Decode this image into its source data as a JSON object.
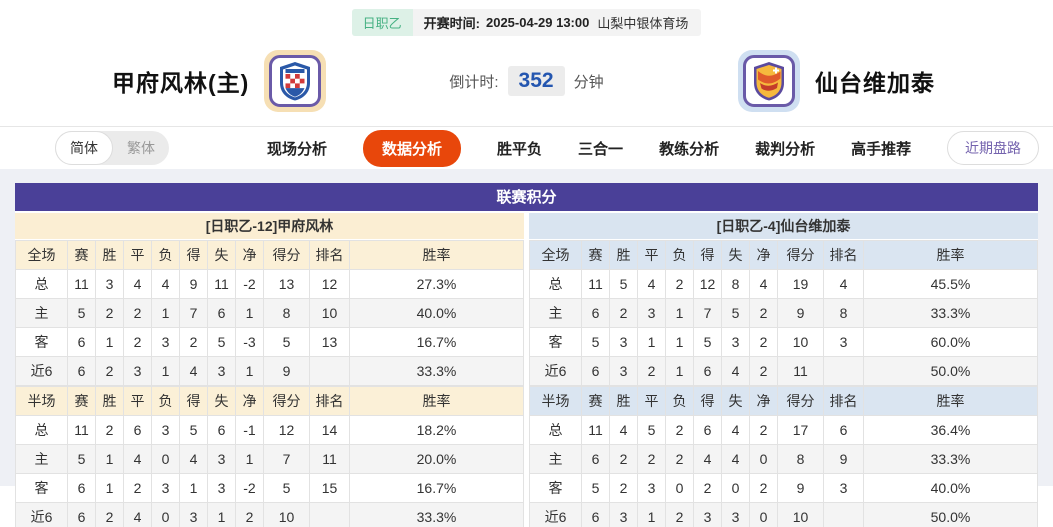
{
  "top_bar": {
    "league_badge": "日职乙",
    "kickoff_label": "开赛时间:",
    "kickoff_time": "2025-04-29 13:00",
    "venue": "山梨中银体育场"
  },
  "match_header": {
    "home_team": "甲府风林(主)",
    "away_team": "仙台维加泰",
    "countdown_label": "倒计时:",
    "countdown_value": "352",
    "countdown_unit": "分钟"
  },
  "nav": {
    "lang_toggle": {
      "simplified": "简体",
      "traditional": "繁体"
    },
    "tabs": [
      {
        "label": "现场分析",
        "active": false
      },
      {
        "label": "数据分析",
        "active": true
      },
      {
        "label": "胜平负",
        "active": false
      },
      {
        "label": "三合一",
        "active": false
      },
      {
        "label": "教练分析",
        "active": false
      },
      {
        "label": "裁判分析",
        "active": false
      },
      {
        "label": "高手推荐",
        "active": false
      }
    ],
    "recent_trends_button": "近期盘路"
  },
  "standings": {
    "title": "联赛积分",
    "home": {
      "header": "[日职乙-12]甲府风林",
      "full": {
        "columns": [
          "全场",
          "赛",
          "胜",
          "平",
          "负",
          "得",
          "失",
          "净",
          "得分",
          "排名",
          "胜率"
        ],
        "rows": [
          {
            "label": "总",
            "type": "total",
            "cells": [
              "11",
              "3",
              "4",
              "4",
              "9",
              "11",
              "-2",
              "13",
              "12",
              "27.3%"
            ]
          },
          {
            "label": "主",
            "type": "home",
            "cells": [
              "5",
              "2",
              "2",
              "1",
              "7",
              "6",
              "1",
              "8",
              "10",
              "40.0%"
            ]
          },
          {
            "label": "客",
            "type": "away",
            "cells": [
              "6",
              "1",
              "2",
              "3",
              "2",
              "5",
              "-3",
              "5",
              "13",
              "16.7%"
            ]
          },
          {
            "label": "近6",
            "type": "recent",
            "cells": [
              "6",
              "2",
              "3",
              "1",
              "4",
              "3",
              "1",
              "9",
              "",
              "33.3%"
            ]
          }
        ]
      },
      "half": {
        "columns": [
          "半场",
          "赛",
          "胜",
          "平",
          "负",
          "得",
          "失",
          "净",
          "得分",
          "排名",
          "胜率"
        ],
        "rows": [
          {
            "label": "总",
            "type": "total",
            "cells": [
              "11",
              "2",
              "6",
              "3",
              "5",
              "6",
              "-1",
              "12",
              "14",
              "18.2%"
            ]
          },
          {
            "label": "主",
            "type": "home",
            "cells": [
              "5",
              "1",
              "4",
              "0",
              "4",
              "3",
              "1",
              "7",
              "11",
              "20.0%"
            ]
          },
          {
            "label": "客",
            "type": "away",
            "cells": [
              "6",
              "1",
              "2",
              "3",
              "1",
              "3",
              "-2",
              "5",
              "15",
              "16.7%"
            ]
          },
          {
            "label": "近6",
            "type": "recent",
            "cells": [
              "6",
              "2",
              "4",
              "0",
              "3",
              "1",
              "2",
              "10",
              "",
              "33.3%"
            ]
          }
        ]
      }
    },
    "away": {
      "header": "[日职乙-4]仙台维加泰",
      "full": {
        "columns": [
          "全场",
          "赛",
          "胜",
          "平",
          "负",
          "得",
          "失",
          "净",
          "得分",
          "排名",
          "胜率"
        ],
        "rows": [
          {
            "label": "总",
            "type": "total",
            "cells": [
              "11",
              "5",
              "4",
              "2",
              "12",
              "8",
              "4",
              "19",
              "4",
              "45.5%"
            ]
          },
          {
            "label": "主",
            "type": "home",
            "cells": [
              "6",
              "2",
              "3",
              "1",
              "7",
              "5",
              "2",
              "9",
              "8",
              "33.3%"
            ]
          },
          {
            "label": "客",
            "type": "away",
            "cells": [
              "5",
              "3",
              "1",
              "1",
              "5",
              "3",
              "2",
              "10",
              "3",
              "60.0%"
            ]
          },
          {
            "label": "近6",
            "type": "recent",
            "cells": [
              "6",
              "3",
              "2",
              "1",
              "6",
              "4",
              "2",
              "11",
              "",
              "50.0%"
            ]
          }
        ]
      },
      "half": {
        "columns": [
          "半场",
          "赛",
          "胜",
          "平",
          "负",
          "得",
          "失",
          "净",
          "得分",
          "排名",
          "胜率"
        ],
        "rows": [
          {
            "label": "总",
            "type": "total",
            "cells": [
              "11",
              "4",
              "5",
              "2",
              "6",
              "4",
              "2",
              "17",
              "6",
              "36.4%"
            ]
          },
          {
            "label": "主",
            "type": "home",
            "cells": [
              "6",
              "2",
              "2",
              "2",
              "4",
              "4",
              "0",
              "8",
              "9",
              "33.3%"
            ]
          },
          {
            "label": "客",
            "type": "away",
            "cells": [
              "5",
              "2",
              "3",
              "0",
              "2",
              "0",
              "2",
              "9",
              "3",
              "40.0%"
            ]
          },
          {
            "label": "近6",
            "type": "recent",
            "cells": [
              "6",
              "3",
              "1",
              "2",
              "3",
              "3",
              "0",
              "10",
              "",
              "50.0%"
            ]
          }
        ]
      }
    }
  },
  "colors": {
    "accent_orange": "#e8470b",
    "title_purple": "#4a4098",
    "home_panel_cream": "#fbeed3",
    "away_panel_blue": "#d9e4f0",
    "home_row_red": "#cc2222",
    "away_row_blue": "#1133cc",
    "badge_green": "#46b183",
    "countdown_blue": "#2456b0"
  }
}
